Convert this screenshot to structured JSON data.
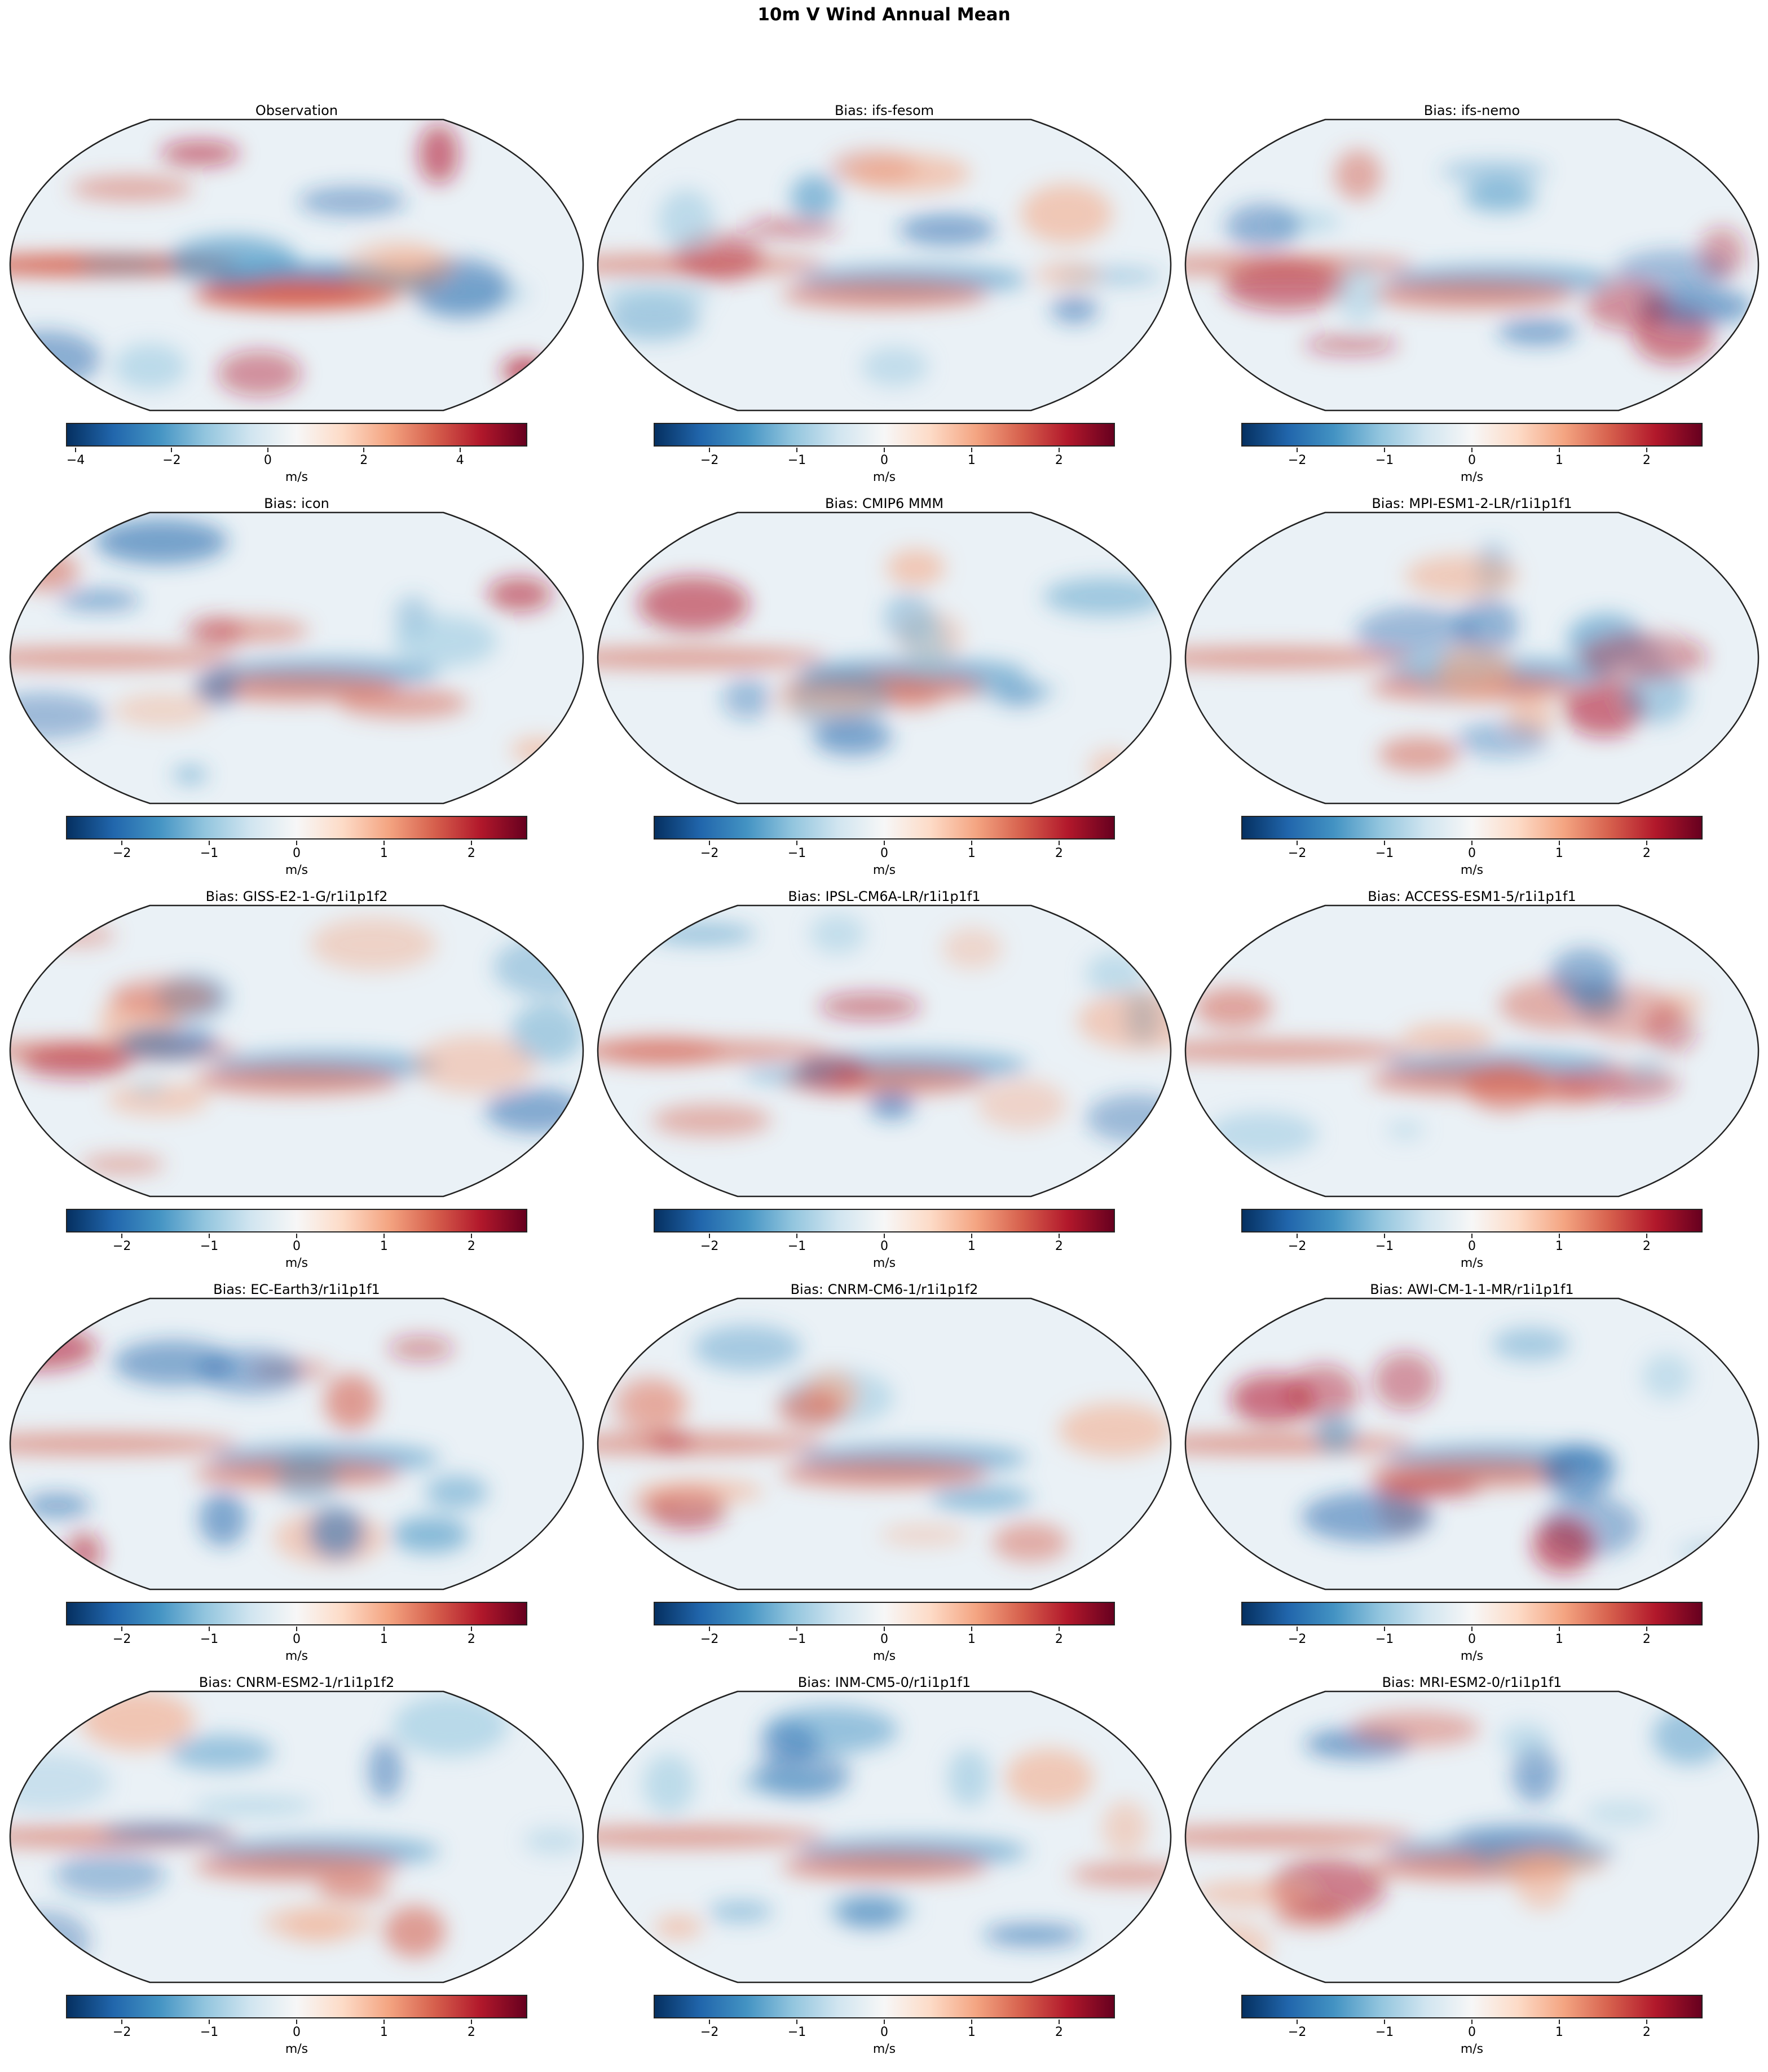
{
  "title": "10m V Wind Annual Mean",
  "colormap": [
    "#053061",
    "#2166ac",
    "#4393c3",
    "#92c5de",
    "#d1e5f0",
    "#f7f7f7",
    "#fddbc7",
    "#f4a582",
    "#d6604d",
    "#b2182b",
    "#67001f"
  ],
  "chart_data": {
    "type": "heatmap",
    "projection": "Robinson (global map)",
    "panels": [
      {
        "title": "Observation",
        "colorbar": {
          "label": "m/s",
          "range": [
            -4.2,
            5.4
          ],
          "ticks": [
            "−4",
            "−2",
            "0",
            "2",
            "4"
          ],
          "tick_values": [
            -4,
            -2,
            0,
            2,
            4
          ]
        }
      },
      {
        "title": "Bias: ifs-fesom",
        "colorbar": {
          "label": "m/s",
          "range": [
            -2.64,
            2.64
          ],
          "ticks": [
            "−2",
            "−1",
            "0",
            "1",
            "2"
          ],
          "tick_values": [
            -2,
            -1,
            0,
            1,
            2
          ]
        }
      },
      {
        "title": "Bias: ifs-nemo",
        "colorbar": {
          "label": "m/s",
          "range": [
            -2.64,
            2.64
          ],
          "ticks": [
            "−2",
            "−1",
            "0",
            "1",
            "2"
          ],
          "tick_values": [
            -2,
            -1,
            0,
            1,
            2
          ]
        }
      },
      {
        "title": "Bias: icon",
        "colorbar": {
          "label": "m/s",
          "range": [
            -2.64,
            2.64
          ],
          "ticks": [
            "−2",
            "−1",
            "0",
            "1",
            "2"
          ],
          "tick_values": [
            -2,
            -1,
            0,
            1,
            2
          ]
        }
      },
      {
        "title": "Bias: CMIP6 MMM",
        "colorbar": {
          "label": "m/s",
          "range": [
            -2.64,
            2.64
          ],
          "ticks": [
            "−2",
            "−1",
            "0",
            "1",
            "2"
          ],
          "tick_values": [
            -2,
            -1,
            0,
            1,
            2
          ]
        }
      },
      {
        "title": "Bias: MPI-ESM1-2-LR/r1i1p1f1",
        "colorbar": {
          "label": "m/s",
          "range": [
            -2.64,
            2.64
          ],
          "ticks": [
            "−2",
            "−1",
            "0",
            "1",
            "2"
          ],
          "tick_values": [
            -2,
            -1,
            0,
            1,
            2
          ]
        }
      },
      {
        "title": "Bias: GISS-E2-1-G/r1i1p1f2",
        "colorbar": {
          "label": "m/s",
          "range": [
            -2.64,
            2.64
          ],
          "ticks": [
            "−2",
            "−1",
            "0",
            "1",
            "2"
          ],
          "tick_values": [
            -2,
            -1,
            0,
            1,
            2
          ]
        }
      },
      {
        "title": "Bias: IPSL-CM6A-LR/r1i1p1f1",
        "colorbar": {
          "label": "m/s",
          "range": [
            -2.64,
            2.64
          ],
          "ticks": [
            "−2",
            "−1",
            "0",
            "1",
            "2"
          ],
          "tick_values": [
            -2,
            -1,
            0,
            1,
            2
          ]
        }
      },
      {
        "title": "Bias: ACCESS-ESM1-5/r1i1p1f1",
        "colorbar": {
          "label": "m/s",
          "range": [
            -2.64,
            2.64
          ],
          "ticks": [
            "−2",
            "−1",
            "0",
            "1",
            "2"
          ],
          "tick_values": [
            -2,
            -1,
            0,
            1,
            2
          ]
        }
      },
      {
        "title": "Bias: EC-Earth3/r1i1p1f1",
        "colorbar": {
          "label": "m/s",
          "range": [
            -2.64,
            2.64
          ],
          "ticks": [
            "−2",
            "−1",
            "0",
            "1",
            "2"
          ],
          "tick_values": [
            -2,
            -1,
            0,
            1,
            2
          ]
        }
      },
      {
        "title": "Bias: CNRM-CM6-1/r1i1p1f2",
        "colorbar": {
          "label": "m/s",
          "range": [
            -2.64,
            2.64
          ],
          "ticks": [
            "−2",
            "−1",
            "0",
            "1",
            "2"
          ],
          "tick_values": [
            -2,
            -1,
            0,
            1,
            2
          ]
        }
      },
      {
        "title": "Bias: AWI-CM-1-1-MR/r1i1p1f1",
        "colorbar": {
          "label": "m/s",
          "range": [
            -2.64,
            2.64
          ],
          "ticks": [
            "−2",
            "−1",
            "0",
            "1",
            "2"
          ],
          "tick_values": [
            -2,
            -1,
            0,
            1,
            2
          ]
        }
      },
      {
        "title": "Bias: CNRM-ESM2-1/r1i1p1f2",
        "colorbar": {
          "label": "m/s",
          "range": [
            -2.64,
            2.64
          ],
          "ticks": [
            "−2",
            "−1",
            "0",
            "1",
            "2"
          ],
          "tick_values": [
            -2,
            -1,
            0,
            1,
            2
          ]
        }
      },
      {
        "title": "Bias: INM-CM5-0/r1i1p1f1",
        "colorbar": {
          "label": "m/s",
          "range": [
            -2.64,
            2.64
          ],
          "ticks": [
            "−2",
            "−1",
            "0",
            "1",
            "2"
          ],
          "tick_values": [
            -2,
            -1,
            0,
            1,
            2
          ]
        }
      },
      {
        "title": "Bias: MRI-ESM2-0/r1i1p1f1",
        "colorbar": {
          "label": "m/s",
          "range": [
            -2.64,
            2.64
          ],
          "ticks": [
            "−2",
            "−1",
            "0",
            "1",
            "2"
          ],
          "tick_values": [
            -2,
            -1,
            0,
            1,
            2
          ]
        }
      }
    ]
  }
}
